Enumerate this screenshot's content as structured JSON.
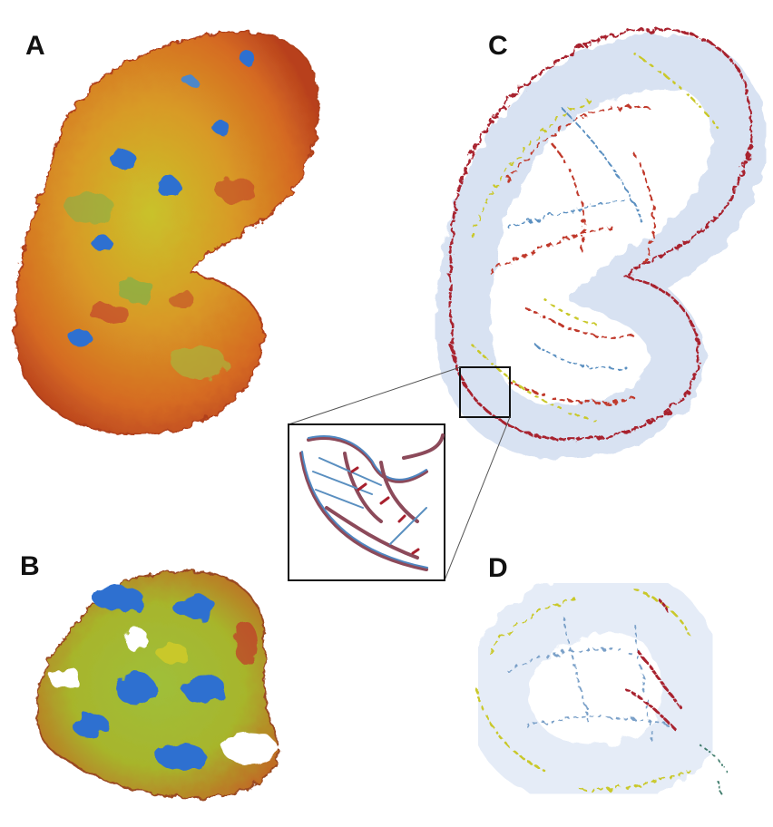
{
  "figure": {
    "panels": [
      {
        "label": "A",
        "name": "surface-map-large-subunit"
      },
      {
        "label": "B",
        "name": "surface-map-small-subunit"
      },
      {
        "label": "C",
        "name": "tube-model-large-subunit"
      },
      {
        "label": "D",
        "name": "tube-model-small-subunit"
      }
    ],
    "colors": {
      "red": "#c0392b",
      "orange": "#e07b1f",
      "yellow": "#c9c82a",
      "green": "#7fb04a",
      "blue": "#2f6fd0",
      "light_blue": "#b9cbe8",
      "white": "#ffffff"
    }
  }
}
